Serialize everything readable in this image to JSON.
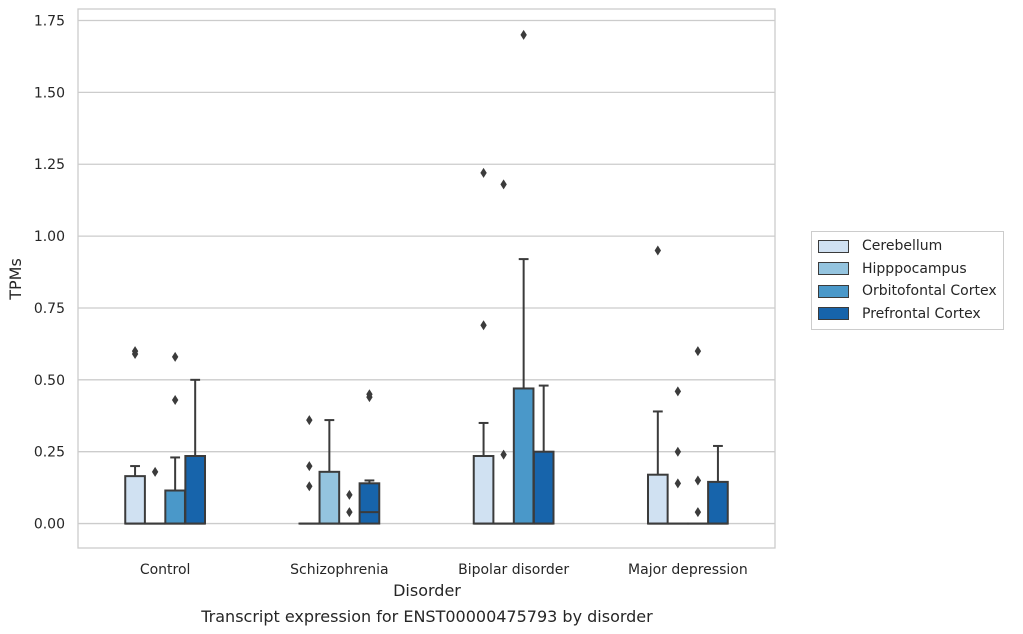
{
  "chart_data": {
    "type": "box",
    "title": "",
    "xlabel": "Disorder",
    "ylabel": "TPMs",
    "caption": "Transcript expression for ENST00000475793 by disorder",
    "categories": [
      "Control",
      "Schizophrenia",
      "Bipolar disorder",
      "Major depression"
    ],
    "ylim": [
      -0.085,
      1.79
    ],
    "yticks": [
      0.0,
      0.25,
      0.5,
      0.75,
      1.0,
      1.25,
      1.5,
      1.75
    ],
    "ytick_labels": [
      "0.00",
      "0.25",
      "0.50",
      "0.75",
      "1.00",
      "1.25",
      "1.50",
      "1.75"
    ],
    "grid": "horizontal",
    "legend_position": "right",
    "series": [
      {
        "name": "Cerebellum",
        "color": "#d0e1f2",
        "boxes": [
          {
            "q1": 0.0,
            "median": 0.0,
            "q3": 0.165,
            "whisker_low": 0.0,
            "whisker_high": 0.2,
            "outliers": [
              0.59,
              0.6
            ]
          },
          {
            "q1": 0.0,
            "median": 0.0,
            "q3": 0.0,
            "whisker_low": 0.0,
            "whisker_high": 0.0,
            "outliers": [
              0.13,
              0.2,
              0.36
            ]
          },
          {
            "q1": 0.0,
            "median": 0.0,
            "q3": 0.235,
            "whisker_low": 0.0,
            "whisker_high": 0.35,
            "outliers": [
              0.69,
              1.22
            ]
          },
          {
            "q1": 0.0,
            "median": 0.0,
            "q3": 0.17,
            "whisker_low": 0.0,
            "whisker_high": 0.39,
            "outliers": [
              0.95
            ]
          }
        ]
      },
      {
        "name": "Hipppocampus",
        "color": "#94c4df",
        "boxes": [
          {
            "q1": 0.0,
            "median": 0.0,
            "q3": 0.0,
            "whisker_low": 0.0,
            "whisker_high": 0.0,
            "outliers": [
              0.18
            ]
          },
          {
            "q1": 0.0,
            "median": 0.0,
            "q3": 0.18,
            "whisker_low": 0.0,
            "whisker_high": 0.36,
            "outliers": []
          },
          {
            "q1": 0.0,
            "median": 0.0,
            "q3": 0.0,
            "whisker_low": 0.0,
            "whisker_high": 0.0,
            "outliers": [
              0.24,
              1.18
            ]
          },
          {
            "q1": 0.0,
            "median": 0.0,
            "q3": 0.0,
            "whisker_low": 0.0,
            "whisker_high": 0.0,
            "outliers": [
              0.14,
              0.25,
              0.46
            ]
          }
        ]
      },
      {
        "name": "Orbitofontal Cortex",
        "color": "#4a98c9",
        "boxes": [
          {
            "q1": 0.0,
            "median": 0.0,
            "q3": 0.115,
            "whisker_low": 0.0,
            "whisker_high": 0.23,
            "outliers": [
              0.43,
              0.58
            ]
          },
          {
            "q1": 0.0,
            "median": 0.0,
            "q3": 0.0,
            "whisker_low": 0.0,
            "whisker_high": 0.0,
            "outliers": [
              0.04,
              0.1
            ]
          },
          {
            "q1": 0.0,
            "median": 0.0,
            "q3": 0.47,
            "whisker_low": 0.0,
            "whisker_high": 0.92,
            "outliers": [
              1.7
            ]
          },
          {
            "q1": 0.0,
            "median": 0.0,
            "q3": 0.0,
            "whisker_low": 0.0,
            "whisker_high": 0.0,
            "outliers": [
              0.04,
              0.15,
              0.6
            ]
          }
        ]
      },
      {
        "name": "Prefrontal Cortex",
        "color": "#1764ab",
        "boxes": [
          {
            "q1": 0.0,
            "median": 0.0,
            "q3": 0.235,
            "whisker_low": 0.0,
            "whisker_high": 0.5,
            "outliers": []
          },
          {
            "q1": 0.0,
            "median": 0.04,
            "q3": 0.14,
            "whisker_low": 0.0,
            "whisker_high": 0.15,
            "outliers": [
              0.44,
              0.45
            ]
          },
          {
            "q1": 0.0,
            "median": 0.0,
            "q3": 0.25,
            "whisker_low": 0.0,
            "whisker_high": 0.48,
            "outliers": []
          },
          {
            "q1": 0.0,
            "median": 0.0,
            "q3": 0.145,
            "whisker_low": 0.0,
            "whisker_high": 0.27,
            "outliers": []
          }
        ]
      }
    ]
  }
}
